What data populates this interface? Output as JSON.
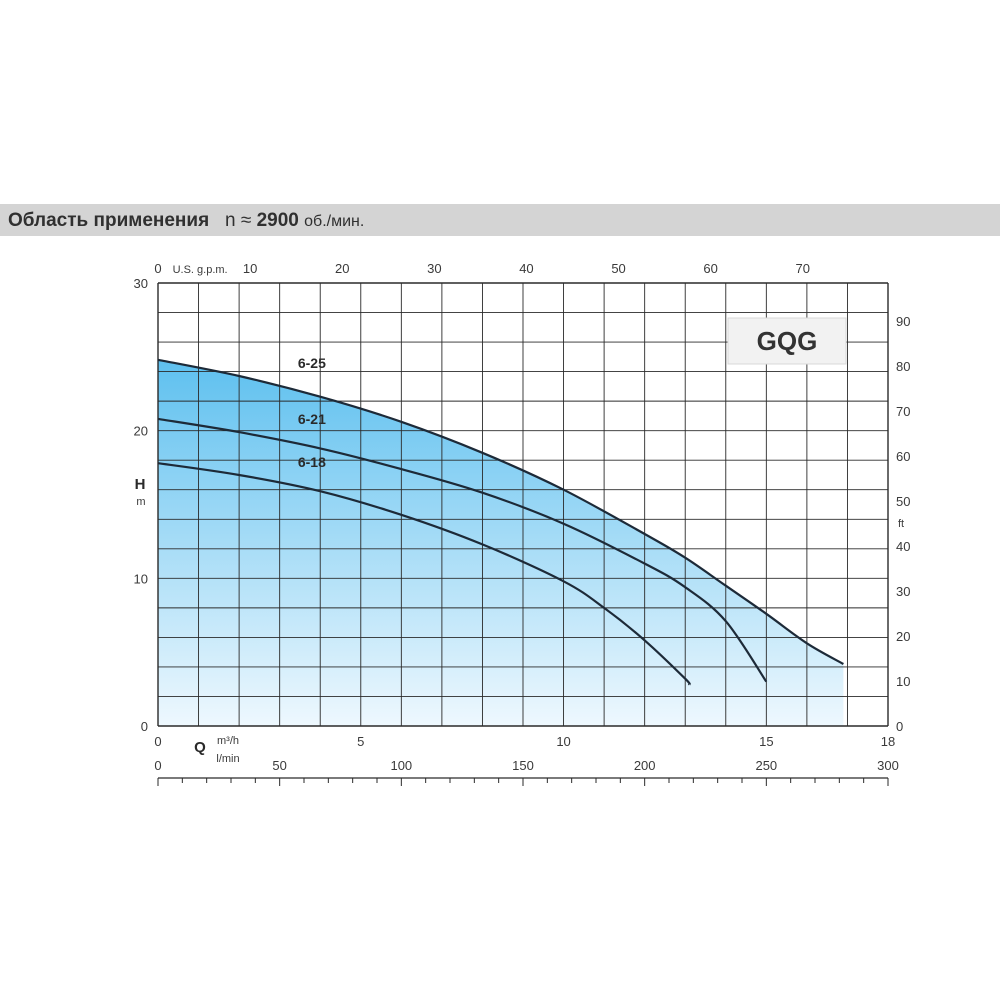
{
  "header": {
    "title": "Область применения",
    "speed_symbol": "n ≈",
    "speed_value": "2900",
    "speed_unit": "об./мин."
  },
  "series_label": "GQG",
  "colors": {
    "header_bg": "#d4d4d4",
    "area_top": "#5ec0ef",
    "area_bottom": "#eef8fe",
    "grid": "#2a2a2a",
    "curve": "#1d2a38"
  },
  "chart_data": {
    "type": "line",
    "title": "",
    "x_primary": {
      "label": "Q",
      "unit_top": "m³/h",
      "unit_bottom": "l/min",
      "range": [
        0,
        18
      ],
      "ticks": [
        0,
        5,
        10,
        15,
        18
      ]
    },
    "x_lpm": {
      "unit": "l/min",
      "range": [
        0,
        300
      ],
      "ticks": [
        0,
        50,
        100,
        150,
        200,
        250,
        300
      ]
    },
    "x_usgpm": {
      "unit": "U.S. g.p.m.",
      "ticks": [
        0,
        10,
        20,
        30,
        40,
        50,
        60,
        70
      ]
    },
    "y_primary": {
      "label": "H",
      "unit": "m",
      "range": [
        0,
        30
      ],
      "ticks": [
        0,
        10,
        20,
        30
      ]
    },
    "y_feet": {
      "unit": "ft",
      "ticks": [
        0,
        10,
        20,
        30,
        40,
        50,
        60,
        70,
        80,
        90
      ]
    },
    "grid": true,
    "series": [
      {
        "name": "6-25",
        "x": [
          0,
          2,
          4,
          6,
          8,
          10,
          12,
          13,
          14,
          15,
          16,
          16.9
        ],
        "y": [
          24.8,
          23.7,
          22.3,
          20.6,
          18.5,
          16.0,
          13.0,
          11.4,
          9.5,
          7.6,
          5.6,
          4.2
        ]
      },
      {
        "name": "6-21",
        "x": [
          0,
          2,
          4,
          6,
          8,
          10,
          12,
          13,
          14,
          15
        ],
        "y": [
          20.8,
          19.9,
          18.8,
          17.4,
          15.8,
          13.7,
          11.0,
          9.4,
          7.1,
          3.0
        ]
      },
      {
        "name": "6-18",
        "x": [
          0,
          2,
          4,
          6,
          8,
          10,
          11,
          12,
          13,
          13.1
        ],
        "y": [
          17.8,
          17.0,
          15.9,
          14.3,
          12.3,
          9.8,
          8.0,
          5.8,
          3.2,
          2.8
        ]
      }
    ]
  }
}
